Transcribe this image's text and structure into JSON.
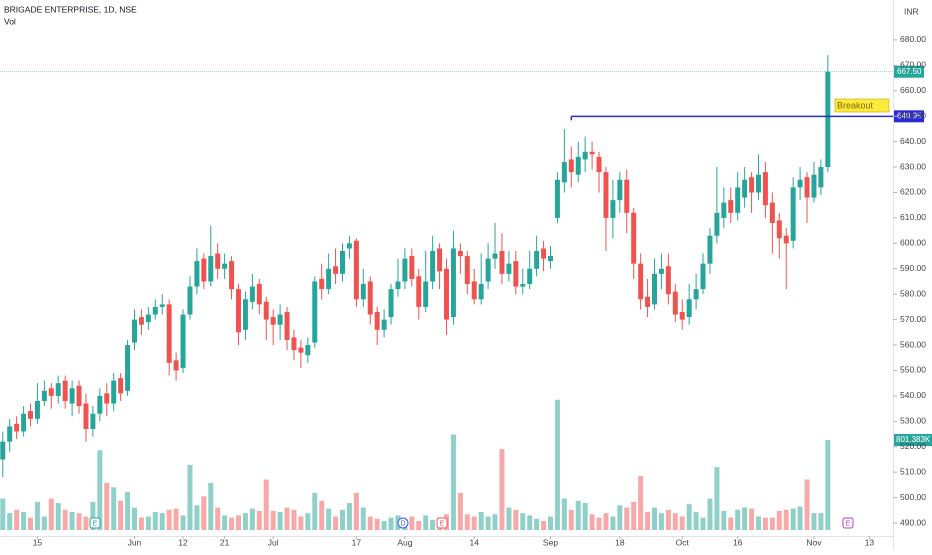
{
  "chart_data": {
    "type": "candlestick",
    "title": "BRIGADE ENTERPRISE, 1D, NSE",
    "volume_title": "Vol",
    "currency": "INR",
    "annotation": "Breakout",
    "breakout_level": 649.95,
    "last_price_label": "667.50",
    "volume_label": "801.383K",
    "events": [
      "E",
      "D",
      "E",
      "E"
    ],
    "up_color": "#26a69a",
    "down_color": "#ef5350",
    "volume_up_color": "#8fd0c8",
    "volume_down_color": "#f6a9a8",
    "xlim": [
      -0.4,
      128.4
    ],
    "xticks": [
      {
        "value": 5,
        "label": "15"
      },
      {
        "value": 19,
        "label": "Jun"
      },
      {
        "value": 26,
        "label": "12"
      },
      {
        "value": 32,
        "label": "21"
      },
      {
        "value": 39,
        "label": "Jul"
      },
      {
        "value": 51,
        "label": "17"
      },
      {
        "value": 58,
        "label": "Aug"
      },
      {
        "value": 68,
        "label": "14"
      },
      {
        "value": 79,
        "label": "Sep"
      },
      {
        "value": 89,
        "label": "18"
      },
      {
        "value": 98,
        "label": "Oct"
      },
      {
        "value": 106,
        "label": "16"
      },
      {
        "value": 117,
        "label": "Nov"
      },
      {
        "value": 125,
        "label": "13"
      }
    ],
    "ylim": [
      484.9,
      695.7
    ],
    "yticks": [
      {
        "value": 490,
        "label": "490.00"
      },
      {
        "value": 500,
        "label": "500.00"
      },
      {
        "value": 510,
        "label": "510.00"
      },
      {
        "value": 520,
        "label": "520.00"
      },
      {
        "value": 530,
        "label": "530.00"
      },
      {
        "value": 540,
        "label": "540.00"
      },
      {
        "value": 550,
        "label": "550.00"
      },
      {
        "value": 560,
        "label": "560.00"
      },
      {
        "value": 570,
        "label": "570.00"
      },
      {
        "value": 580,
        "label": "580.00"
      },
      {
        "value": 590,
        "label": "590.00"
      },
      {
        "value": 600,
        "label": "600.00"
      },
      {
        "value": 610,
        "label": "610.00"
      },
      {
        "value": 620,
        "label": "620.00"
      },
      {
        "value": 630,
        "label": "630.00"
      },
      {
        "value": 640,
        "label": "640.00"
      },
      {
        "value": 650,
        "label": "650.00"
      },
      {
        "value": 660,
        "label": "660.00"
      },
      {
        "value": 670,
        "label": "670.00"
      },
      {
        "value": 680,
        "label": "680.00"
      }
    ],
    "volume_lim": [
      0,
      4719000
    ],
    "open": [
      515,
      522,
      529,
      526,
      534,
      531,
      538,
      543,
      540,
      546,
      537,
      544,
      537,
      527,
      533,
      541,
      537,
      547,
      542,
      561,
      571,
      569,
      572,
      575,
      576,
      554,
      551,
      572,
      583,
      594,
      585,
      596,
      590,
      593,
      582,
      566,
      577,
      584,
      577,
      571,
      568,
      573,
      563,
      559,
      556,
      561,
      586,
      582,
      591,
      588,
      598,
      601,
      578,
      585,
      573,
      566,
      571,
      582,
      585,
      595,
      587,
      575,
      585,
      598,
      590,
      571,
      597,
      595,
      585,
      578,
      585,
      594,
      597,
      588,
      593,
      583,
      584,
      590,
      598,
      593,
      610,
      624,
      633,
      627,
      633,
      636,
      634,
      628,
      610,
      617,
      625,
      612,
      592,
      579,
      576,
      588,
      591,
      581,
      573,
      571,
      578,
      582,
      592,
      603,
      610,
      617,
      612,
      618,
      626,
      620,
      628,
      616,
      609,
      603,
      601,
      622,
      626,
      618,
      622,
      630
    ],
    "high": [
      526,
      531,
      532,
      536,
      537,
      545,
      546,
      545,
      548,
      548,
      546,
      546,
      541,
      536,
      543,
      545,
      549,
      549,
      562,
      574,
      574,
      575,
      578,
      580,
      578,
      557,
      574,
      587,
      598,
      596,
      607,
      600,
      596,
      595,
      584,
      581,
      588,
      586,
      579,
      574,
      576,
      575,
      566,
      562,
      563,
      587,
      592,
      596,
      598,
      600,
      603,
      602,
      590,
      587,
      575,
      574,
      584,
      594,
      598,
      598,
      590,
      597,
      603,
      600,
      594,
      605,
      600,
      597,
      590,
      596,
      600,
      608,
      604,
      597,
      597,
      590,
      597,
      603,
      601,
      599,
      628,
      645,
      638,
      640,
      642,
      640,
      636,
      630,
      625,
      628,
      629,
      614,
      596,
      586,
      594,
      596,
      596,
      584,
      578,
      584,
      588,
      596,
      606,
      630,
      622,
      622,
      628,
      630,
      628,
      635,
      632,
      620,
      612,
      606,
      626,
      630,
      628,
      632,
      633,
      674
    ],
    "low": [
      508,
      518,
      523,
      524,
      528,
      529,
      536,
      535,
      537,
      535,
      532,
      533,
      522,
      524,
      530,
      532,
      534,
      538,
      540,
      558,
      564,
      566,
      570,
      572,
      548,
      546,
      549,
      570,
      580,
      582,
      583,
      586,
      586,
      578,
      560,
      562,
      574,
      572,
      562,
      560,
      562,
      558,
      554,
      551,
      553,
      559,
      578,
      580,
      584,
      585,
      594,
      575,
      575,
      568,
      560,
      563,
      568,
      579,
      582,
      583,
      570,
      573,
      582,
      582,
      564,
      568,
      588,
      580,
      576,
      576,
      582,
      590,
      584,
      585,
      580,
      580,
      582,
      587,
      589,
      590,
      608,
      620,
      622,
      624,
      628,
      629,
      620,
      597,
      602,
      612,
      604,
      586,
      574,
      571,
      574,
      582,
      576,
      569,
      566,
      568,
      574,
      580,
      588,
      600,
      606,
      608,
      609,
      614,
      612,
      617,
      610,
      596,
      594,
      582,
      598,
      617,
      608,
      616,
      619,
      628
    ],
    "close": [
      522,
      528,
      526,
      533,
      531,
      538,
      542,
      540,
      545,
      538,
      543,
      536,
      527,
      533,
      540,
      537,
      546,
      541,
      560,
      570,
      568,
      572,
      575,
      576,
      553,
      550,
      572,
      583,
      593,
      585,
      595,
      590,
      592,
      582,
      565,
      578,
      583,
      576,
      570,
      568,
      572,
      562,
      558,
      557,
      560,
      585,
      582,
      590,
      588,
      597,
      600,
      578,
      584,
      572,
      566,
      570,
      582,
      585,
      594,
      586,
      575,
      585,
      597,
      589,
      570,
      598,
      595,
      584,
      578,
      584,
      594,
      596,
      588,
      592,
      583,
      584,
      590,
      597,
      594,
      595,
      625,
      632,
      628,
      634,
      636,
      635,
      628,
      610,
      617,
      625,
      612,
      592,
      578,
      575,
      588,
      590,
      580,
      572,
      570,
      578,
      582,
      592,
      603,
      612,
      616,
      612,
      622,
      625,
      620,
      627,
      615,
      608,
      602,
      600,
      622,
      625,
      618,
      627,
      630,
      667.5
    ],
    "volume": [
      280000,
      150000,
      180000,
      160000,
      110000,
      250000,
      120000,
      280000,
      240000,
      180000,
      160000,
      150000,
      120000,
      250000,
      710000,
      420000,
      380000,
      260000,
      340000,
      200000,
      110000,
      120000,
      160000,
      150000,
      180000,
      190000,
      130000,
      580000,
      220000,
      300000,
      420000,
      200000,
      130000,
      110000,
      130000,
      150000,
      190000,
      170000,
      450000,
      170000,
      160000,
      200000,
      180000,
      120000,
      150000,
      330000,
      260000,
      190000,
      120000,
      180000,
      240000,
      330000,
      200000,
      120000,
      100000,
      80000,
      110000,
      130000,
      100000,
      120000,
      80000,
      130000,
      90000,
      100000,
      140000,
      850000,
      330000,
      140000,
      120000,
      160000,
      120000,
      140000,
      720000,
      200000,
      180000,
      150000,
      130000,
      100000,
      80000,
      120000,
      1160000,
      280000,
      180000,
      260000,
      240000,
      140000,
      110000,
      150000,
      120000,
      220000,
      200000,
      250000,
      480000,
      160000,
      200000,
      150000,
      180000,
      150000,
      120000,
      230000,
      160000,
      110000,
      280000,
      560000,
      170000,
      110000,
      180000,
      200000,
      190000,
      120000,
      110000,
      110000,
      170000,
      180000,
      190000,
      210000,
      450000,
      150000,
      150000,
      801383
    ]
  }
}
